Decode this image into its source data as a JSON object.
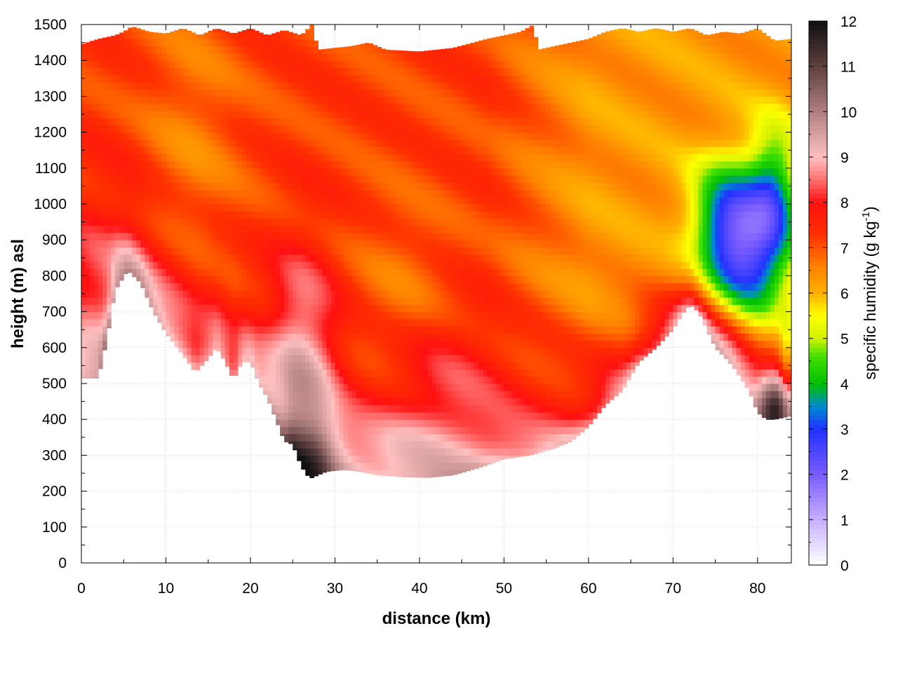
{
  "chart_data": {
    "type": "heatmap",
    "title": "",
    "xlabel": "distance (km)",
    "ylabel": "height (m) asl",
    "colorbar_label": "specific humidity (g kg",
    "colorbar_label_superscript": "-1",
    "colorbar_label_suffix": ")",
    "xlim": [
      0,
      84
    ],
    "ylim": [
      0,
      1500
    ],
    "clim": [
      0,
      12
    ],
    "grid": true,
    "x_ticks": [
      "0",
      "10",
      "20",
      "30",
      "40",
      "50",
      "60",
      "70",
      "80"
    ],
    "y_ticks": [
      "0",
      "100",
      "200",
      "300",
      "400",
      "500",
      "600",
      "700",
      "800",
      "900",
      "1000",
      "1100",
      "1200",
      "1300",
      "1400",
      "1500"
    ],
    "colorbar_ticks": [
      "0",
      "1",
      "2",
      "3",
      "4",
      "5",
      "6",
      "7",
      "8",
      "9",
      "10",
      "11",
      "12"
    ],
    "colormap": [
      {
        "v": 0,
        "color": "#ffffff"
      },
      {
        "v": 1,
        "color": "#c8b0ff"
      },
      {
        "v": 2,
        "color": "#7a5cff"
      },
      {
        "v": 3,
        "color": "#2030ff"
      },
      {
        "v": 3.5,
        "color": "#008ad0"
      },
      {
        "v": 4,
        "color": "#00c000"
      },
      {
        "v": 4.6,
        "color": "#40e000"
      },
      {
        "v": 5,
        "color": "#d0f000"
      },
      {
        "v": 5.5,
        "color": "#ffff00"
      },
      {
        "v": 6,
        "color": "#ffb000"
      },
      {
        "v": 6.6,
        "color": "#ff8000"
      },
      {
        "v": 7.3,
        "color": "#ff3000"
      },
      {
        "v": 8,
        "color": "#ff1010"
      },
      {
        "v": 8.5,
        "color": "#ff7070"
      },
      {
        "v": 9,
        "color": "#ffc0c0"
      },
      {
        "v": 10,
        "color": "#b08080"
      },
      {
        "v": 11,
        "color": "#604040"
      },
      {
        "v": 12,
        "color": "#101010"
      }
    ],
    "surface_height": [
      [
        0,
        515
      ],
      [
        2,
        515
      ],
      [
        3,
        620
      ],
      [
        4,
        760
      ],
      [
        5.5,
        815
      ],
      [
        7,
        780
      ],
      [
        8.5,
        700
      ],
      [
        10,
        640
      ],
      [
        12,
        580
      ],
      [
        13.5,
        530
      ],
      [
        15,
        570
      ],
      [
        16,
        600
      ],
      [
        17,
        560
      ],
      [
        18,
        510
      ],
      [
        19,
        560
      ],
      [
        20,
        560
      ],
      [
        21,
        500
      ],
      [
        22,
        460
      ],
      [
        23,
        400
      ],
      [
        24,
        340
      ],
      [
        25,
        330
      ],
      [
        26,
        270
      ],
      [
        27,
        235
      ],
      [
        29,
        255
      ],
      [
        31,
        260
      ],
      [
        33,
        255
      ],
      [
        35,
        245
      ],
      [
        38,
        240
      ],
      [
        41,
        238
      ],
      [
        44,
        245
      ],
      [
        47,
        265
      ],
      [
        50,
        290
      ],
      [
        53,
        300
      ],
      [
        56,
        320
      ],
      [
        58,
        340
      ],
      [
        60,
        380
      ],
      [
        62,
        440
      ],
      [
        64,
        480
      ],
      [
        66,
        560
      ],
      [
        68,
        600
      ],
      [
        70,
        650
      ],
      [
        71,
        690
      ],
      [
        72,
        720
      ],
      [
        73,
        700
      ],
      [
        75,
        600
      ],
      [
        77,
        550
      ],
      [
        79,
        480
      ],
      [
        80,
        420
      ],
      [
        81,
        400
      ],
      [
        82,
        400
      ],
      [
        84,
        410
      ]
    ],
    "top_height": [
      [
        0,
        1445
      ],
      [
        2,
        1460
      ],
      [
        4,
        1470
      ],
      [
        5,
        1480
      ],
      [
        6,
        1495
      ],
      [
        8,
        1480
      ],
      [
        10,
        1475
      ],
      [
        12,
        1490
      ],
      [
        14,
        1470
      ],
      [
        16,
        1490
      ],
      [
        18,
        1475
      ],
      [
        20,
        1490
      ],
      [
        22,
        1470
      ],
      [
        24,
        1485
      ],
      [
        26,
        1470
      ],
      [
        27.3,
        1500
      ],
      [
        28,
        1430
      ],
      [
        30,
        1435
      ],
      [
        32,
        1440
      ],
      [
        34,
        1450
      ],
      [
        36,
        1430
      ],
      [
        40,
        1425
      ],
      [
        44,
        1435
      ],
      [
        48,
        1460
      ],
      [
        52,
        1480
      ],
      [
        53.5,
        1500
      ],
      [
        54,
        1430
      ],
      [
        56,
        1440
      ],
      [
        60,
        1460
      ],
      [
        62,
        1480
      ],
      [
        64,
        1490
      ],
      [
        66,
        1480
      ],
      [
        68,
        1490
      ],
      [
        70,
        1480
      ],
      [
        72,
        1490
      ],
      [
        74,
        1470
      ],
      [
        76,
        1480
      ],
      [
        78,
        1475
      ],
      [
        80,
        1490
      ],
      [
        82,
        1455
      ],
      [
        84,
        1460
      ]
    ],
    "humidity_anomalies": [
      {
        "x": 13,
        "z": 1150,
        "sx": 4,
        "sz": 300,
        "dv": -0.6
      },
      {
        "x": 2,
        "z": 700,
        "sx": 4,
        "sz": 250,
        "dv": 1.0
      },
      {
        "x": 10,
        "z": 650,
        "sx": 5,
        "sz": 200,
        "dv": 0.8
      },
      {
        "x": 26,
        "z": 480,
        "sx": 3,
        "sz": 250,
        "dv": 2.2
      },
      {
        "x": 27,
        "z": 280,
        "sx": 2,
        "sz": 80,
        "dv": 1.5
      },
      {
        "x": 42,
        "z": 500,
        "sx": 6,
        "sz": 150,
        "dv": 1.0
      },
      {
        "x": 38,
        "z": 700,
        "sx": 4,
        "sz": 200,
        "dv": -0.6
      },
      {
        "x": 38,
        "z": 320,
        "sx": 10,
        "sz": 80,
        "dv": 0.8
      },
      {
        "x": 79,
        "z": 850,
        "sx": 3.5,
        "sz": 150,
        "dv": -3.5
      },
      {
        "x": 76,
        "z": 950,
        "sx": 3,
        "sz": 120,
        "dv": -2.0
      },
      {
        "x": 82,
        "z": 1050,
        "sx": 2,
        "sz": 120,
        "dv": -2.0
      },
      {
        "x": 82,
        "z": 430,
        "sx": 1.6,
        "sz": 60,
        "dv": 3.5
      },
      {
        "x": 75,
        "z": 620,
        "sx": 4,
        "sz": 120,
        "dv": 1.4
      },
      {
        "x": 83.5,
        "z": 550,
        "sx": 0.6,
        "sz": 100,
        "dv": -1.2
      }
    ]
  }
}
